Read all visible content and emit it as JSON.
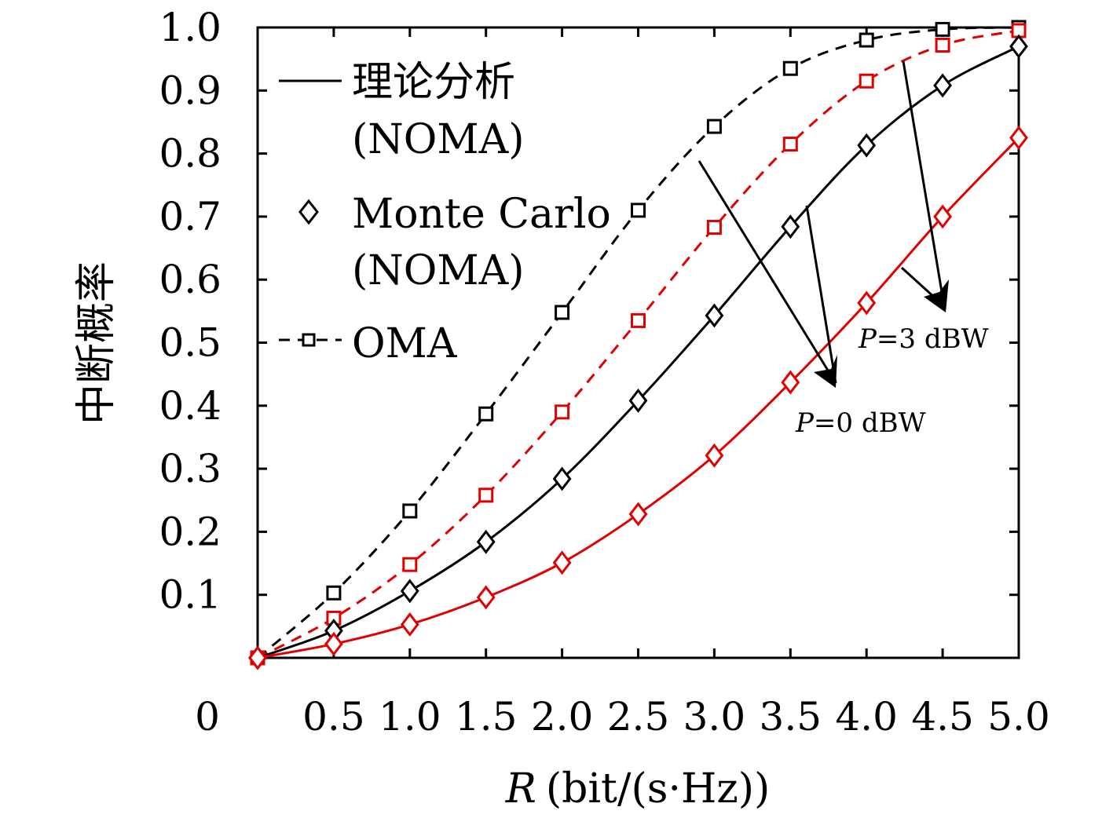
{
  "chart_data": {
    "type": "line",
    "xlabel_var": "R",
    "xlabel_unit": "(bit/(s·Hz))",
    "ylabel": "中断概率",
    "xlim": [
      0,
      5.0
    ],
    "ylim": [
      0,
      1.0
    ],
    "x_ticks": [
      0.5,
      1.0,
      1.5,
      2.0,
      2.5,
      3.0,
      3.5,
      4.0,
      4.5,
      5.0
    ],
    "x_tick_labels": [
      "0.5",
      "1.0",
      "1.5",
      "2.0",
      "2.5",
      "3.0",
      "3.5",
      "4.0",
      "4.5",
      "5.0"
    ],
    "y_ticks": [
      0.1,
      0.2,
      0.3,
      0.4,
      0.5,
      0.6,
      0.7,
      0.8,
      0.9,
      1.0
    ],
    "y_tick_labels": [
      "0.1",
      "0.2",
      "0.3",
      "0.4",
      "0.5",
      "0.6",
      "0.7",
      "0.8",
      "0.9",
      "1.0"
    ],
    "origin_label": "0",
    "grid": false,
    "legend_position": "top-left",
    "legend": [
      {
        "line1": "理论分析",
        "line2": "(NOMA)",
        "style": "solid-line"
      },
      {
        "line1": "Monte Carlo",
        "line2": "(NOMA)",
        "style": "diamond-marker"
      },
      {
        "line1": "OMA",
        "line2": "",
        "style": "dashed-square"
      }
    ],
    "x": [
      0,
      0.5,
      1.0,
      1.5,
      2.0,
      2.5,
      3.0,
      3.5,
      4.0,
      4.5,
      5.0
    ],
    "series": [
      {
        "group": "OMA",
        "power": "P=0 dBW",
        "color": "#000000",
        "dash": "dashed",
        "marker": "square",
        "values": [
          0.0,
          0.103,
          0.233,
          0.387,
          0.548,
          0.71,
          0.843,
          0.935,
          0.98,
          0.997,
          1.0
        ]
      },
      {
        "group": "OMA",
        "power": "P=3 dBW",
        "color": "#e00000",
        "dash": "dashed",
        "marker": "square",
        "values": [
          0.0,
          0.063,
          0.148,
          0.258,
          0.39,
          0.535,
          0.683,
          0.815,
          0.915,
          0.972,
          0.995
        ]
      },
      {
        "group": "NOMA",
        "power": "P=0 dBW",
        "color": "#000000",
        "dash": "solid",
        "marker": "diamond",
        "values": [
          0.0,
          0.043,
          0.106,
          0.184,
          0.284,
          0.408,
          0.543,
          0.684,
          0.813,
          0.908,
          0.97
        ]
      },
      {
        "group": "NOMA",
        "power": "P=3 dBW",
        "color": "#e00000",
        "dash": "solid",
        "marker": "diamond",
        "values": [
          0.0,
          0.022,
          0.053,
          0.096,
          0.151,
          0.228,
          0.321,
          0.437,
          0.563,
          0.7,
          0.825
        ]
      }
    ],
    "annotations": [
      {
        "var": "P",
        "text": "=0 dBW"
      },
      {
        "var": "P",
        "text": "=3 dBW"
      }
    ]
  }
}
